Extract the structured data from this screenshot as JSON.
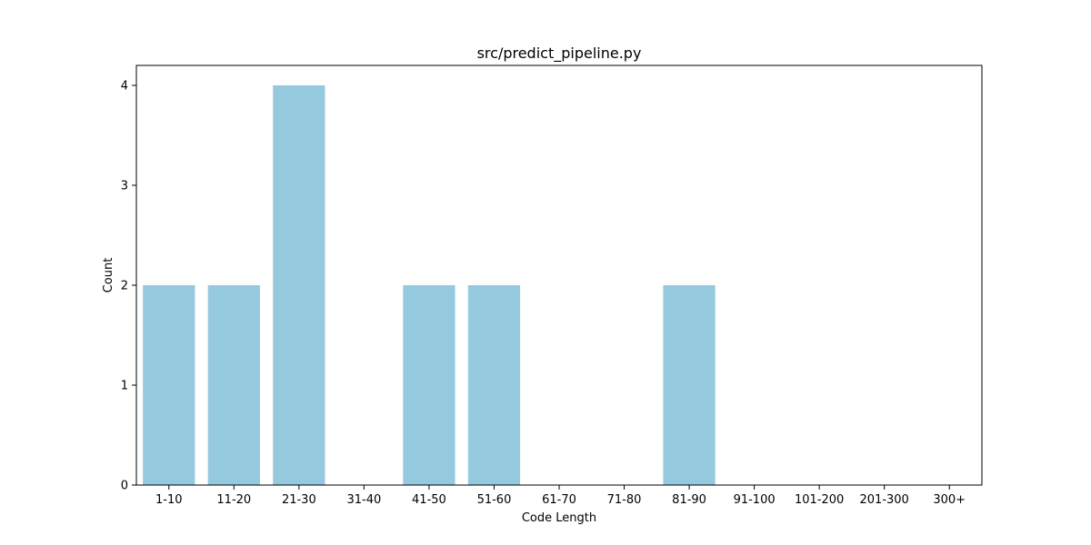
{
  "chart_data": {
    "type": "bar",
    "title": "src/predict_pipeline.py",
    "xlabel": "Code Length",
    "ylabel": "Count",
    "categories": [
      "1-10",
      "11-20",
      "21-30",
      "31-40",
      "41-50",
      "51-60",
      "61-70",
      "71-80",
      "81-90",
      "91-100",
      "101-200",
      "201-300",
      "300+"
    ],
    "values": [
      2,
      2,
      4,
      0,
      2,
      2,
      0,
      0,
      2,
      0,
      0,
      0,
      0
    ],
    "ylim": [
      0,
      4.2
    ],
    "yticks": [
      0,
      1,
      2,
      3,
      4
    ],
    "grid": false,
    "legend": "none",
    "bar_color": "#95c9de"
  }
}
